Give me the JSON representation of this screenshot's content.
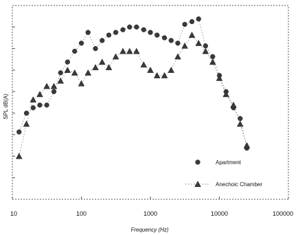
{
  "chart_data": {
    "type": "scatter",
    "title": "",
    "xlabel": "Frequency (Hz)",
    "ylabel": "SPL dB(A)",
    "x_scale": "log",
    "xlim": [
      10,
      100000
    ],
    "x_ticks": [
      "10",
      "100",
      "1000",
      "10000",
      "100000"
    ],
    "y_ticks_labeled": false,
    "grid": false,
    "legend_position": "bottom-right",
    "series": [
      {
        "name": "Apartment",
        "marker": "circle",
        "color": "#3a3a3a",
        "points": [
          [
            12.5,
            25
          ],
          [
            16,
            32
          ],
          [
            20,
            34
          ],
          [
            25,
            35
          ],
          [
            31.5,
            35
          ],
          [
            40,
            40
          ],
          [
            50,
            47
          ],
          [
            63,
            51
          ],
          [
            80,
            55
          ],
          [
            100,
            58
          ],
          [
            125,
            62
          ],
          [
            160,
            56
          ],
          [
            200,
            59
          ],
          [
            250,
            61
          ],
          [
            315,
            62
          ],
          [
            400,
            63
          ],
          [
            500,
            64
          ],
          [
            630,
            64
          ],
          [
            800,
            63
          ],
          [
            1000,
            62
          ],
          [
            1250,
            61
          ],
          [
            1600,
            60
          ],
          [
            2000,
            59
          ],
          [
            2500,
            58
          ],
          [
            3150,
            65
          ],
          [
            4000,
            66
          ],
          [
            5000,
            67
          ],
          [
            6300,
            57
          ],
          [
            8000,
            53
          ],
          [
            10000,
            46
          ],
          [
            12500,
            40
          ],
          [
            16000,
            34
          ],
          [
            20000,
            30
          ],
          [
            25000,
            19
          ]
        ]
      },
      {
        "name": "Anechoic Chamber",
        "marker": "triangle",
        "color": "#3a3a3a",
        "points": [
          [
            12.5,
            16
          ],
          [
            16,
            28
          ],
          [
            20,
            37
          ],
          [
            25,
            39
          ],
          [
            31.5,
            42
          ],
          [
            40,
            42
          ],
          [
            50,
            44
          ],
          [
            63,
            48
          ],
          [
            80,
            47
          ],
          [
            100,
            43
          ],
          [
            125,
            47
          ],
          [
            160,
            49
          ],
          [
            200,
            51
          ],
          [
            250,
            49
          ],
          [
            315,
            53
          ],
          [
            400,
            55
          ],
          [
            500,
            55
          ],
          [
            630,
            55
          ],
          [
            800,
            50
          ],
          [
            1000,
            48
          ],
          [
            1250,
            46
          ],
          [
            1600,
            46
          ],
          [
            2000,
            48
          ],
          [
            2500,
            53
          ],
          [
            3150,
            57
          ],
          [
            4000,
            61
          ],
          [
            5000,
            58
          ],
          [
            6300,
            55
          ],
          [
            8000,
            51
          ],
          [
            10000,
            45
          ],
          [
            12500,
            39
          ],
          [
            16000,
            35
          ],
          [
            20000,
            28
          ],
          [
            25000,
            20
          ]
        ]
      }
    ]
  }
}
